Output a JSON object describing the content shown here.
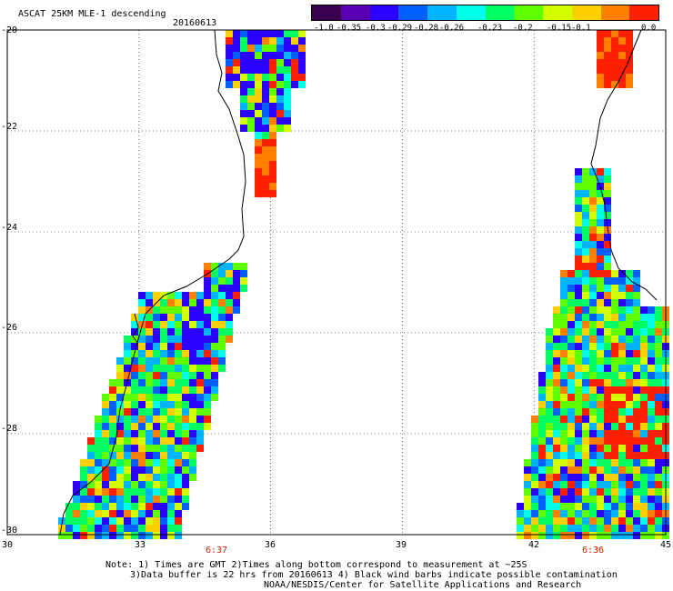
{
  "header": {
    "title": "ASCAT 25KM MLE-1 descending",
    "date": "20160613"
  },
  "colorbar": {
    "ticks": [
      "-1.0",
      "-0.35",
      "-0.3",
      "-0.29",
      "-0.28",
      "-0.26",
      "-0.23",
      "-0.2",
      "-0.15",
      "-0.1",
      "0.0"
    ],
    "colors": [
      "#3a0050",
      "#5a00b4",
      "#2a00ff",
      "#0060ff",
      "#00b4ff",
      "#00ffe6",
      "#00ff60",
      "#60ff00",
      "#d4ff00",
      "#ffd000",
      "#ff8000",
      "#ff2000"
    ]
  },
  "axes": {
    "x_ticks": [
      "30",
      "33",
      "36",
      "39",
      "42",
      "45"
    ],
    "y_ticks": [
      "-20",
      "-22",
      "-24",
      "-26",
      "-28",
      "-30"
    ]
  },
  "pass_times": [
    "6:37",
    "6:36"
  ],
  "notes": {
    "line1": "Note: 1) Times are GMT 2)Times along bottom correspond to measurement at ~25S",
    "line2": "3)Data buffer is 22 hrs from 20160613 4) Black wind barbs indicate possible contamination",
    "line3": "NOAA/NESDIS/Center for Satellite Applications and Research"
  }
}
